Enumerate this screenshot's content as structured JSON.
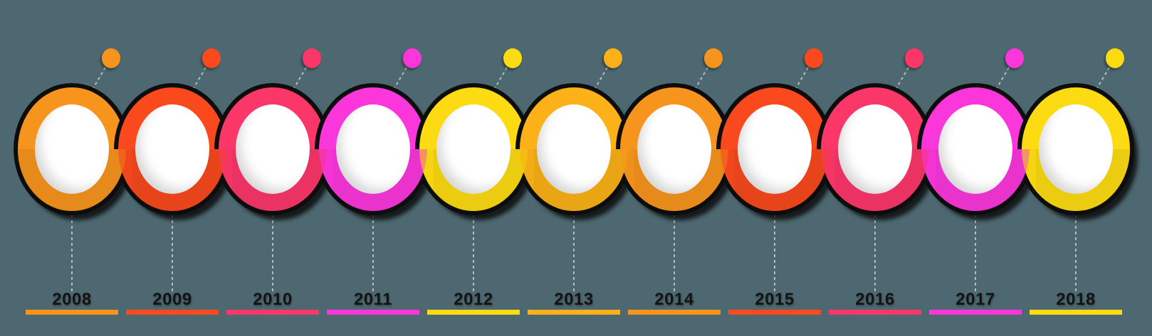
{
  "background_color": "#4D6870",
  "timeline": {
    "connector_color": "#B5BDBD",
    "label_color": "#131313",
    "items": [
      {
        "year": "2008",
        "color": "#F7941D",
        "color_dark": "#E68A1B"
      },
      {
        "year": "2009",
        "color": "#F9491D",
        "color_dark": "#E8441B"
      },
      {
        "year": "2010",
        "color": "#FB3769",
        "color_dark": "#EA3362"
      },
      {
        "year": "2011",
        "color": "#FB36DB",
        "color_dark": "#EA32CC"
      },
      {
        "year": "2012",
        "color": "#FCDB12",
        "color_dark": "#EBCC11"
      },
      {
        "year": "2013",
        "color": "#FBB117",
        "color_dark": "#EAA515"
      },
      {
        "year": "2014",
        "color": "#F7941D",
        "color_dark": "#E68A1B"
      },
      {
        "year": "2015",
        "color": "#F9491D",
        "color_dark": "#E8441B"
      },
      {
        "year": "2016",
        "color": "#FB3769",
        "color_dark": "#EA3362"
      },
      {
        "year": "2017",
        "color": "#FB36DB",
        "color_dark": "#EA32CC"
      },
      {
        "year": "2018",
        "color": "#FCDB12",
        "color_dark": "#EBCC11"
      }
    ]
  }
}
